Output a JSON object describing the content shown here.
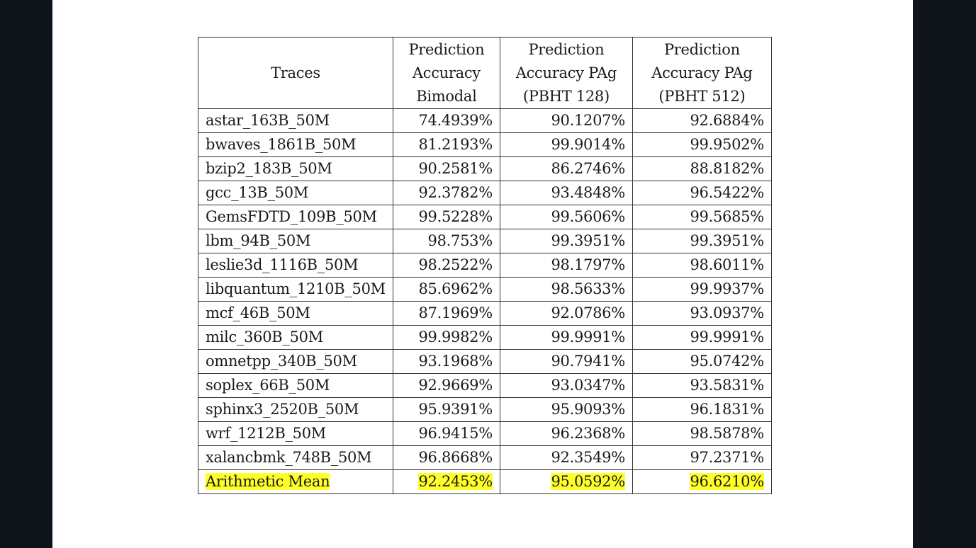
{
  "table": {
    "headers": [
      [
        "Traces"
      ],
      [
        "Prediction",
        "Accuracy",
        "Bimodal"
      ],
      [
        "Prediction",
        "Accuracy PAg",
        "(PBHT 128)"
      ],
      [
        "Prediction",
        "Accuracy PAg",
        "(PBHT 512)"
      ]
    ],
    "rows": [
      [
        "astar_163B_50M",
        "74.4939%",
        "90.1207%",
        "92.6884%"
      ],
      [
        "bwaves_1861B_50M",
        "81.2193%",
        "99.9014%",
        "99.9502%"
      ],
      [
        "bzip2_183B_50M",
        "90.2581%",
        "86.2746%",
        "88.8182%"
      ],
      [
        "gcc_13B_50M",
        "92.3782%",
        "93.4848%",
        "96.5422%"
      ],
      [
        "GemsFDTD_109B_50M",
        "99.5228%",
        "99.5606%",
        "99.5685%"
      ],
      [
        "lbm_94B_50M",
        "98.753%",
        "99.3951%",
        "99.3951%"
      ],
      [
        "leslie3d_1116B_50M",
        "98.2522%",
        "98.1797%",
        "98.6011%"
      ],
      [
        "libquantum_1210B_50M",
        "85.6962%",
        "98.5633%",
        "99.9937%"
      ],
      [
        "mcf_46B_50M",
        "87.1969%",
        "92.0786%",
        "93.0937%"
      ],
      [
        "milc_360B_50M",
        "99.9982%",
        "99.9991%",
        "99.9991%"
      ],
      [
        "omnetpp_340B_50M",
        "93.1968%",
        "90.7941%",
        "95.0742%"
      ],
      [
        "soplex_66B_50M",
        "92.9669%",
        "93.0347%",
        "93.5831%"
      ],
      [
        "sphinx3_2520B_50M",
        "95.9391%",
        "95.9093%",
        "96.1831%"
      ],
      [
        "wrf_1212B_50M",
        "96.9415%",
        "96.2368%",
        "98.5878%"
      ],
      [
        "xalancbmk_748B_50M",
        "96.8668%",
        "92.3549%",
        "97.2371%"
      ]
    ],
    "summary_row": [
      "Arithmetic Mean",
      "92.2453%",
      "95.0592%",
      "96.6210%"
    ],
    "highlight_color": "#ffff2a"
  }
}
